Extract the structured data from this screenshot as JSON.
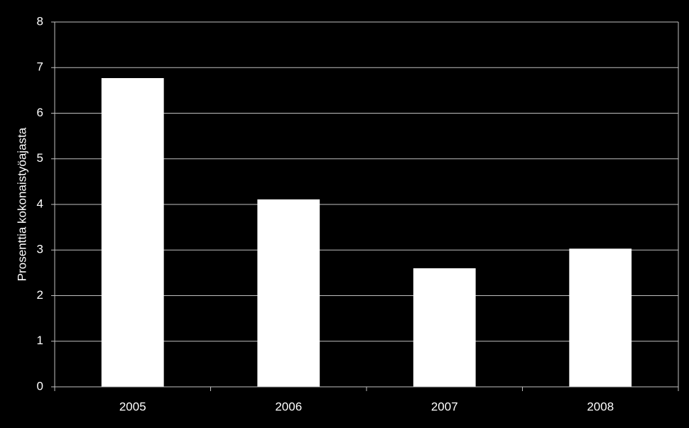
{
  "chart_data": {
    "type": "bar",
    "y_label": "Prosenttia kokonaistyöajasta",
    "categories": [
      "2005",
      "2006",
      "2007",
      "2008"
    ],
    "values": [
      6.77,
      4.11,
      2.6,
      3.03
    ],
    "color": "#ffffff",
    "ylim": [
      0,
      8
    ],
    "yticks": [
      0,
      1,
      2,
      3,
      4,
      5,
      6,
      7,
      8
    ],
    "grid": true
  }
}
